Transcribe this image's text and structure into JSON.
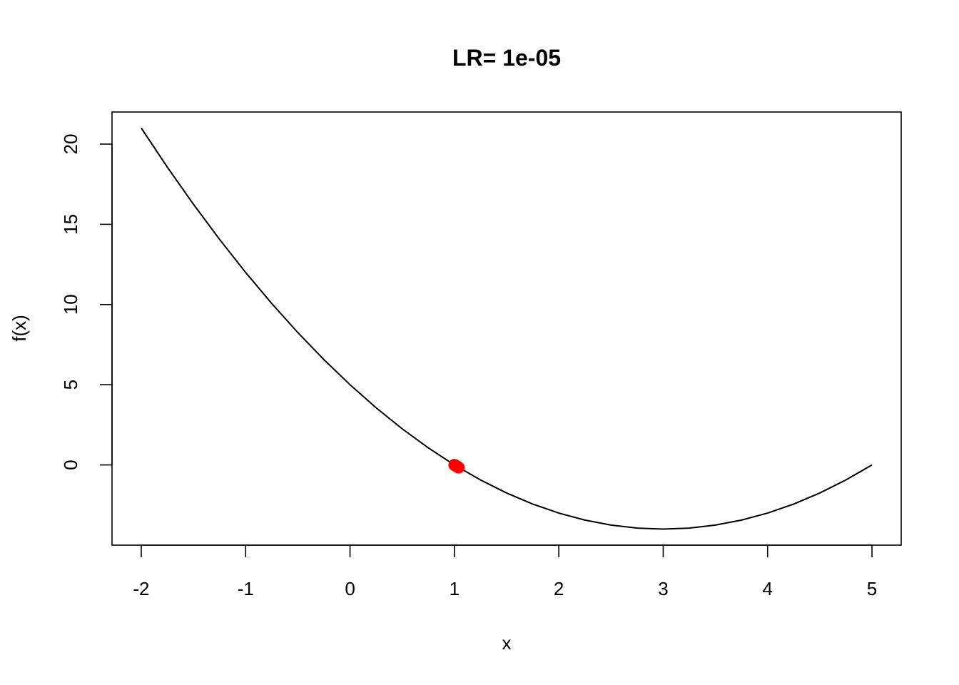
{
  "chart_data": {
    "type": "line",
    "title": "LR=  1e-05",
    "xlabel": "x",
    "ylabel": "f(x)",
    "xlim": [
      -2.28,
      5.28
    ],
    "ylim": [
      -5,
      22
    ],
    "x_ticks": [
      -2,
      -1,
      0,
      1,
      2,
      3,
      4,
      5
    ],
    "x_tick_labels": [
      "-2",
      "-1",
      "0",
      "1",
      "2",
      "3",
      "4",
      "5"
    ],
    "y_ticks": [
      0,
      5,
      10,
      15,
      20
    ],
    "y_tick_labels": [
      "0",
      "5",
      "10",
      "15",
      "20"
    ],
    "grid": false,
    "series": [
      {
        "color": "#000000",
        "x": [
          -2,
          -1.75,
          -1.5,
          -1.25,
          -1,
          -0.75,
          -0.5,
          -0.25,
          0,
          0.25,
          0.5,
          0.75,
          1,
          1.25,
          1.5,
          1.75,
          2,
          2.25,
          2.5,
          2.75,
          3,
          3.25,
          3.5,
          3.75,
          4,
          4.25,
          4.5,
          4.75,
          5
        ],
        "y": [
          21,
          18.5625,
          16.25,
          14.0625,
          12,
          10.0625,
          8.25,
          6.5625,
          5,
          3.5625,
          2.25,
          1.0625,
          0,
          -0.9375,
          -1.75,
          -2.4375,
          -3,
          -3.4375,
          -3.75,
          -3.9375,
          -4,
          -3.9375,
          -3.75,
          -3.4375,
          -3,
          -2.4375,
          -1.75,
          -0.9375,
          0
        ]
      }
    ],
    "points": {
      "color": "#ff0000",
      "x": [
        1.0,
        1.005,
        1.01,
        1.015,
        1.02,
        1.025,
        1.03,
        1.035,
        1.04
      ],
      "y": [
        0.0,
        -0.0199,
        -0.0396,
        -0.0592,
        -0.0786,
        -0.0979,
        -0.1171,
        -0.1361,
        -0.1549
      ]
    }
  }
}
